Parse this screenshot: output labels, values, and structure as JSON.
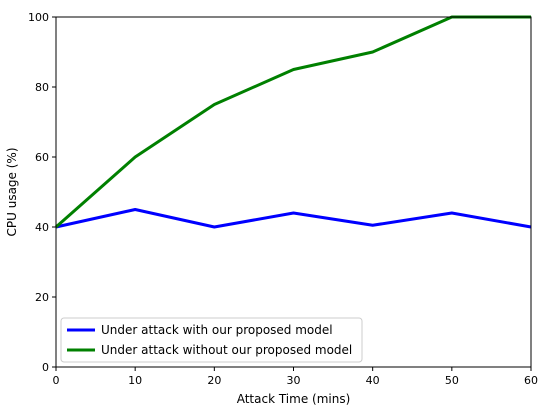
{
  "chart_data": {
    "type": "line",
    "title": "",
    "xlabel": "Attack Time (mins)",
    "ylabel": "CPU usage (%)",
    "xlim": [
      0,
      60
    ],
    "ylim": [
      0,
      100
    ],
    "x": [
      0,
      10,
      20,
      30,
      40,
      50,
      60
    ],
    "xticks": [
      "0",
      "10",
      "20",
      "30",
      "40",
      "50",
      "60"
    ],
    "yticks": [
      "0",
      "20",
      "40",
      "60",
      "80",
      "100"
    ],
    "grid": false,
    "legend_position": "lower-left",
    "series": [
      {
        "name": "Under attack with our proposed model",
        "color": "#0000ff",
        "values": [
          40,
          45,
          40,
          44,
          40.5,
          44,
          40
        ]
      },
      {
        "name": "Under attack without our proposed model",
        "color": "#008000",
        "values": [
          40,
          60,
          75,
          85,
          90,
          100,
          100
        ]
      }
    ]
  }
}
